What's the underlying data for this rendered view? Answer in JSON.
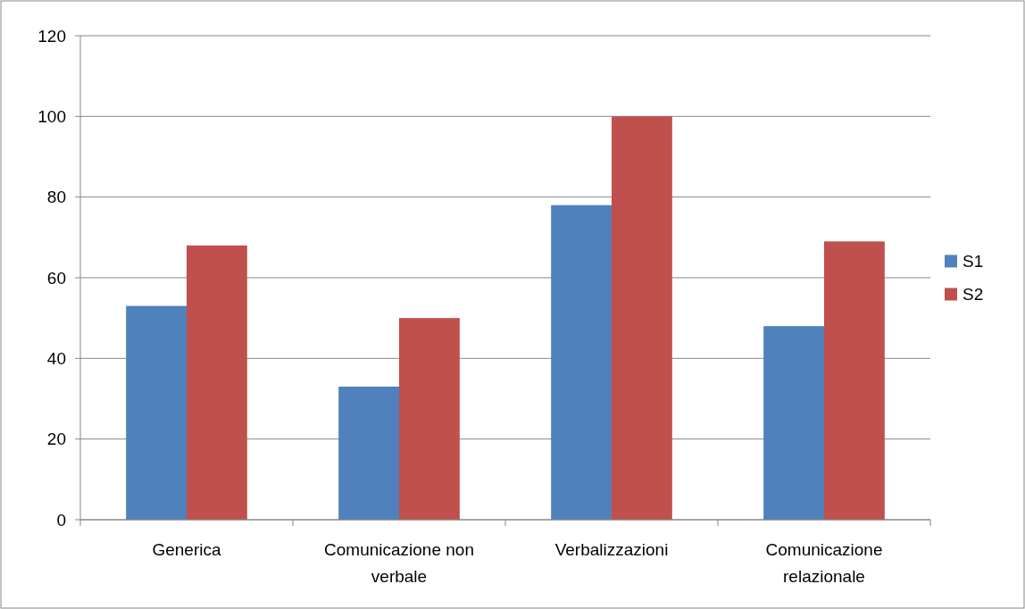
{
  "chart_data": {
    "type": "bar",
    "categories": [
      "Generica",
      "Comunicazione non verbale",
      "Verbalizzazioni",
      "Comunicazione relazionale"
    ],
    "series": [
      {
        "name": "S1",
        "color": "#4f81bd",
        "values": [
          53,
          33,
          78,
          48
        ]
      },
      {
        "name": "S2",
        "color": "#c0504d",
        "values": [
          68,
          50,
          100,
          69
        ]
      }
    ],
    "ylim": [
      0,
      120
    ],
    "yticks": [
      0,
      20,
      40,
      60,
      80,
      100,
      120
    ],
    "grid": "y",
    "legend": "right"
  }
}
